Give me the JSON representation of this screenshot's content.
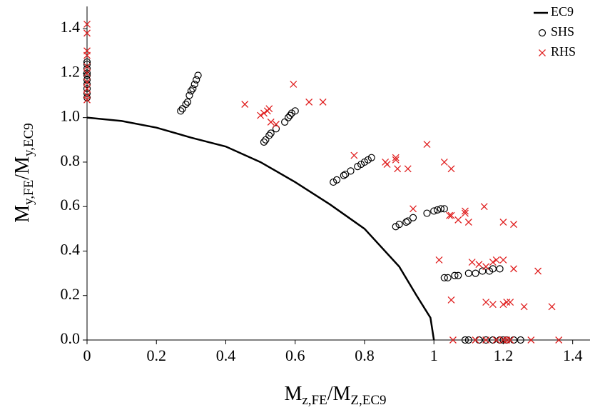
{
  "chart_data": {
    "type": "scatter",
    "x_label": [
      "M",
      "z,FE",
      "/M",
      "Z,EC9"
    ],
    "y_label": [
      "M",
      "y,FE",
      "/M",
      "y,EC9"
    ],
    "xlim": [
      0,
      1.45
    ],
    "ylim": [
      0,
      1.5
    ],
    "xticks": [
      0,
      0.2,
      0.4,
      0.6,
      0.8,
      1,
      1.2,
      1.4
    ],
    "yticks": [
      {
        "value": 0,
        "label": "0.0"
      },
      0.2,
      0.4,
      0.6,
      0.8,
      {
        "value": 1,
        "label": "1.0"
      },
      1.2,
      1.4
    ],
    "legend": "upper right",
    "series": [
      {
        "name": "EC9",
        "type": "line",
        "color": "#000000",
        "x": [
          0,
          0.1,
          0.2,
          0.3,
          0.4,
          0.5,
          0.6,
          0.7,
          0.8,
          0.9,
          0.95,
          0.99,
          1.0
        ],
        "y": [
          1,
          0.985,
          0.955,
          0.91,
          0.87,
          0.8,
          0.71,
          0.61,
          0.5,
          0.33,
          0.2,
          0.1,
          0
        ]
      },
      {
        "name": "SHS",
        "type": "scatter",
        "marker": "circle",
        "color": "#000000",
        "x": [
          0,
          0,
          0,
          0,
          0,
          0,
          0,
          0,
          0,
          0,
          0.27,
          0.275,
          0.285,
          0.29,
          0.295,
          0.3,
          0.305,
          0.31,
          0.315,
          0.32,
          0.51,
          0.515,
          0.525,
          0.53,
          0.545,
          0.57,
          0.58,
          0.585,
          0.59,
          0.6,
          0.71,
          0.72,
          0.74,
          0.745,
          0.76,
          0.78,
          0.79,
          0.8,
          0.81,
          0.82,
          0.89,
          0.9,
          0.92,
          0.925,
          0.94,
          0.98,
          1.0,
          1.01,
          1.02,
          1.03,
          1.03,
          1.04,
          1.06,
          1.07,
          1.1,
          1.12,
          1.14,
          1.16,
          1.17,
          1.19,
          1.09,
          1.1,
          1.13,
          1.15,
          1.17,
          1.19,
          1.2,
          1.21,
          1.23,
          1.25
        ],
        "y": [
          1.09,
          1.11,
          1.13,
          1.15,
          1.17,
          1.19,
          1.2,
          1.22,
          1.24,
          1.25,
          1.03,
          1.04,
          1.06,
          1.07,
          1.1,
          1.12,
          1.13,
          1.15,
          1.17,
          1.19,
          0.89,
          0.9,
          0.92,
          0.93,
          0.95,
          0.98,
          1.0,
          1.01,
          1.02,
          1.03,
          0.71,
          0.72,
          0.74,
          0.745,
          0.76,
          0.78,
          0.79,
          0.8,
          0.81,
          0.82,
          0.51,
          0.52,
          0.53,
          0.535,
          0.55,
          0.57,
          0.58,
          0.585,
          0.59,
          0.59,
          0.28,
          0.28,
          0.29,
          0.29,
          0.3,
          0.3,
          0.31,
          0.31,
          0.32,
          0.32,
          0,
          0,
          0,
          0,
          0,
          0,
          0,
          0,
          0,
          0
        ]
      },
      {
        "name": "RHS",
        "type": "scatter",
        "marker": "x",
        "color": "#e02020",
        "x": [
          0,
          0,
          0,
          0,
          0,
          0,
          0,
          0,
          0,
          0,
          0.455,
          0.5,
          0.51,
          0.52,
          0.525,
          0.53,
          0.545,
          0.595,
          0.64,
          0.68,
          0.77,
          0.86,
          0.865,
          0.89,
          0.89,
          0.895,
          0.925,
          0.94,
          0.98,
          1.03,
          1.05,
          1.05,
          1.045,
          1.07,
          1.09,
          1.09,
          1.1,
          1.145,
          1.2,
          1.23,
          1.015,
          1.11,
          1.13,
          1.15,
          1.17,
          1.18,
          1.2,
          1.23,
          1.3,
          1.05,
          1.15,
          1.17,
          1.2,
          1.21,
          1.22,
          1.26,
          1.34,
          1.055,
          1.12,
          1.15,
          1.18,
          1.2,
          1.21,
          1.22,
          1.28,
          1.36
        ],
        "y": [
          1.08,
          1.1,
          1.13,
          1.16,
          1.2,
          1.23,
          1.28,
          1.3,
          1.38,
          1.42,
          1.06,
          1.01,
          1.02,
          1.03,
          1.04,
          0.98,
          0.97,
          1.15,
          1.07,
          1.07,
          0.83,
          0.8,
          0.79,
          0.82,
          0.81,
          0.77,
          0.77,
          0.59,
          0.88,
          0.8,
          0.77,
          0.56,
          0.56,
          0.54,
          0.58,
          0.57,
          0.53,
          0.6,
          0.53,
          0.52,
          0.36,
          0.35,
          0.34,
          0.33,
          0.35,
          0.36,
          0.36,
          0.32,
          0.31,
          0.18,
          0.17,
          0.16,
          0.16,
          0.17,
          0.17,
          0.15,
          0.15,
          0,
          0,
          0,
          0,
          0,
          0,
          0,
          0,
          0
        ]
      }
    ]
  }
}
